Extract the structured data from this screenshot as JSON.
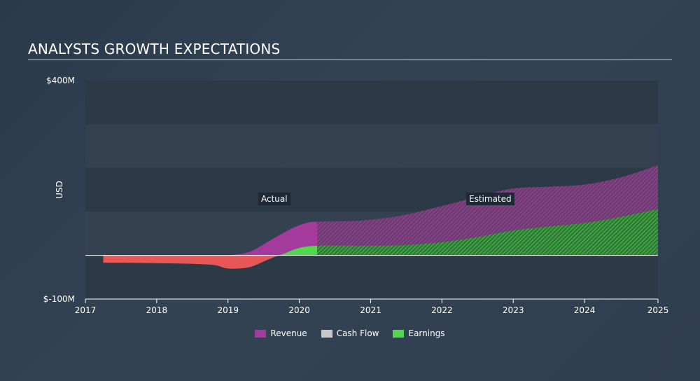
{
  "title": "ANALYSTS GROWTH EXPECTATIONS",
  "colors": {
    "revenue": "#a33a9c",
    "cashflow": "#c8c8c8",
    "earnings": "#51d84f",
    "negative": "#e85757"
  },
  "chart_data": {
    "type": "area",
    "ylabel": "USD",
    "ylim": [
      -100,
      400
    ],
    "y_ticks": [
      "$400M",
      "$-100M"
    ],
    "x_ticks": [
      "2017",
      "2018",
      "2019",
      "2020",
      "2021",
      "2022",
      "2023",
      "2024",
      "2025"
    ],
    "actual_label": "Actual",
    "estimated_label": "Estimated",
    "actual_end": 2020.25,
    "grid": true,
    "legend_position": "bottom-center",
    "series": [
      {
        "name": "Revenue",
        "x": [
          2019.0,
          2019.3,
          2019.6,
          2019.9,
          2020.1,
          2020.25,
          2020.8,
          2021.4,
          2022.0,
          2022.5,
          2023.0,
          2023.5,
          2024.0,
          2024.5,
          2025.03
        ],
        "y": [
          0,
          8,
          35,
          62,
          74,
          77,
          79,
          90,
          113,
          134,
          153,
          157,
          162,
          178,
          206
        ]
      },
      {
        "name": "Cash Flow",
        "x": [],
        "y": []
      },
      {
        "name": "Earnings",
        "x": [
          2017.25,
          2017.6,
          2018.0,
          2018.4,
          2018.8,
          2019.0,
          2019.3,
          2019.6,
          2019.8,
          2020.0,
          2020.25,
          2020.8,
          2021.4,
          2022.0,
          2022.5,
          2023.0,
          2023.5,
          2024.0,
          2024.5,
          2025.03
        ],
        "y": [
          -17,
          -17,
          -18,
          -19,
          -22,
          -30,
          -27,
          -7,
          5,
          17,
          22,
          22,
          23,
          30,
          42,
          57,
          66,
          74,
          88,
          106
        ]
      }
    ]
  },
  "legend": {
    "revenue": "Revenue",
    "cashflow": "Cash Flow",
    "earnings": "Earnings"
  }
}
